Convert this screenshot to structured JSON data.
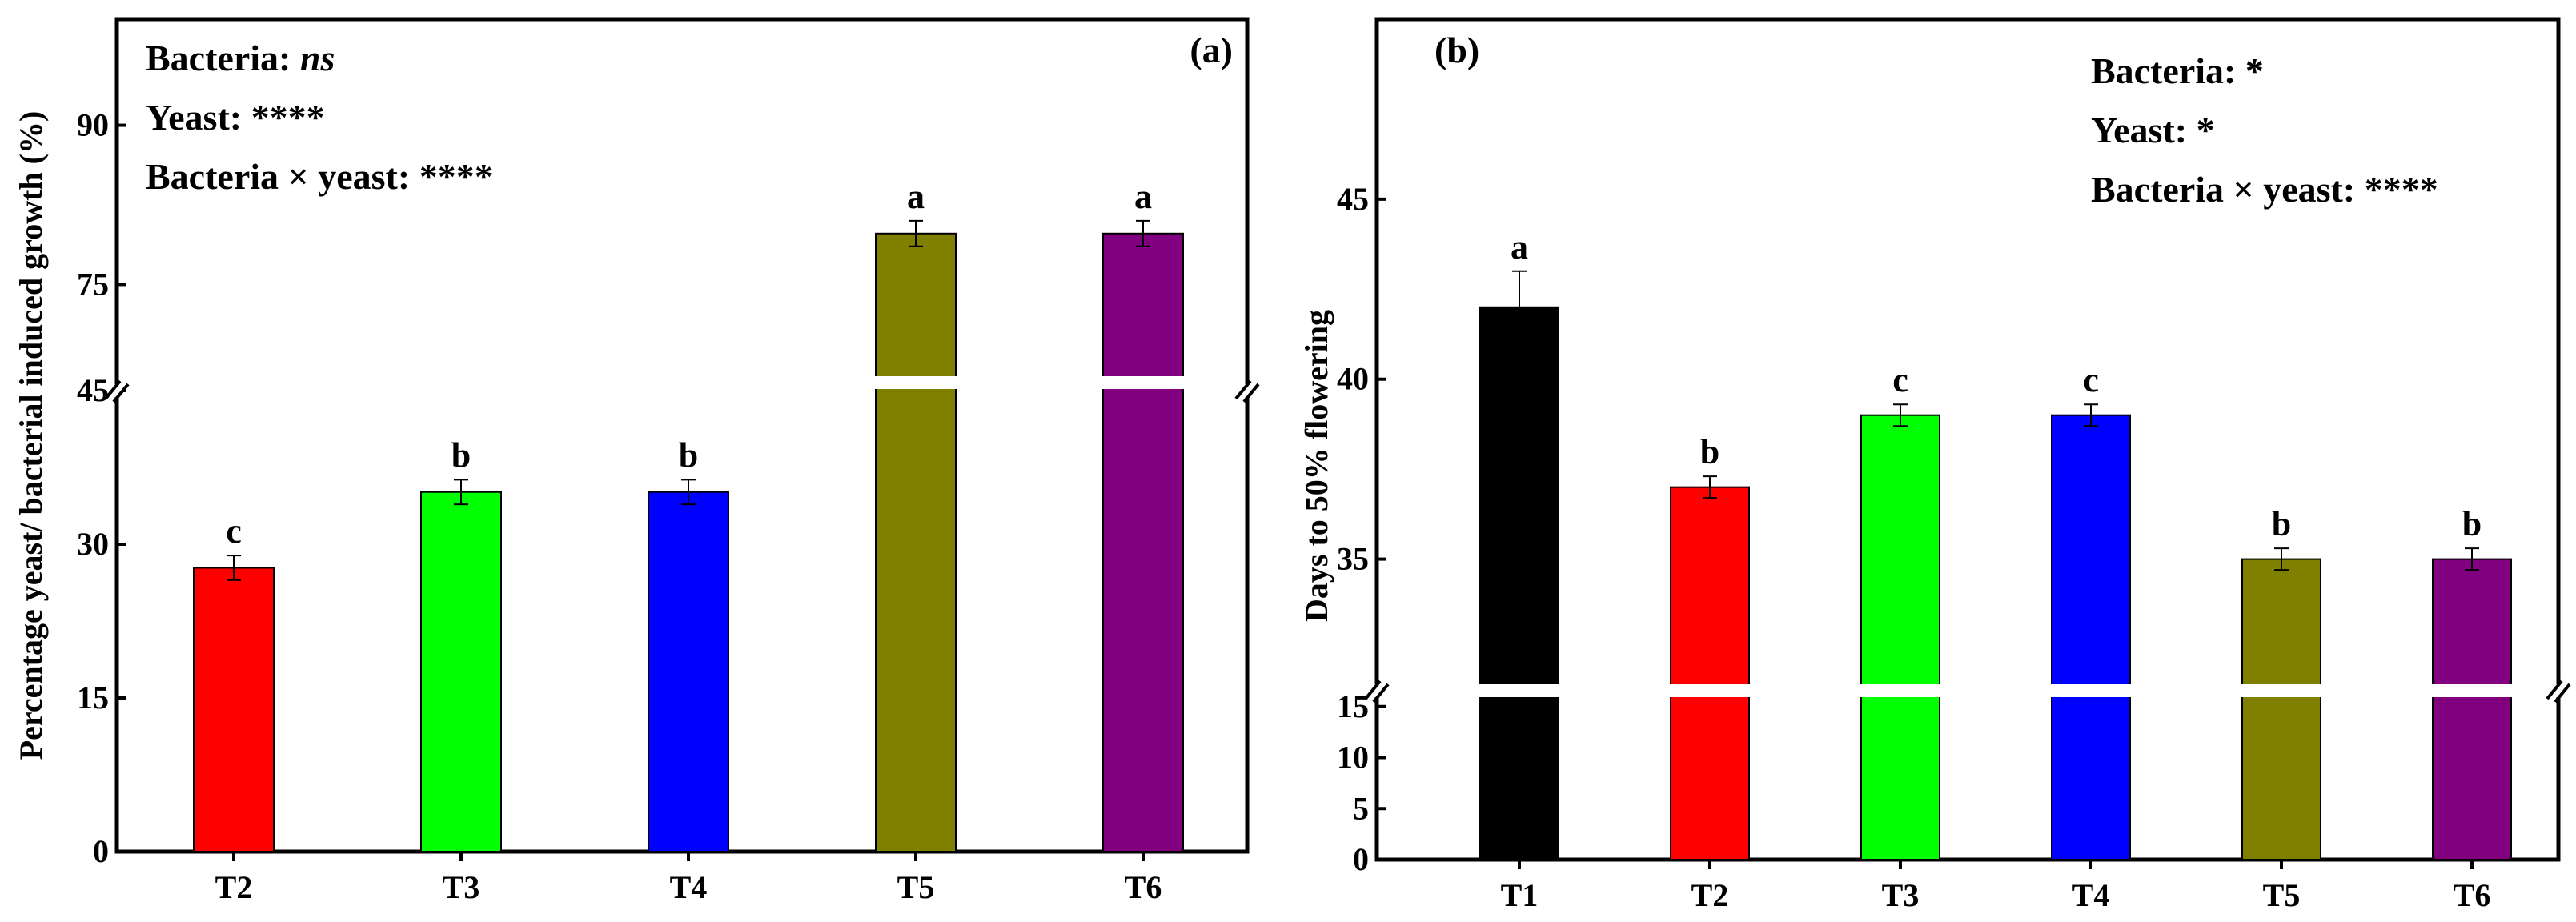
{
  "colors": {
    "T1": "#000000",
    "T2": "#ff0000",
    "T3": "#00ff00",
    "T4": "#0000ff",
    "T5": "#808000",
    "T6": "#800080"
  },
  "chart_data": [
    {
      "type": "bar",
      "panel_label": "(a)",
      "ylabel": "Percentage yeast/ bacterial induced growth (%)",
      "xlabel": "",
      "categories": [
        "T2",
        "T3",
        "T4",
        "T5",
        "T6"
      ],
      "values": [
        27.7,
        35.1,
        35.1,
        79.8,
        79.8
      ],
      "errors": [
        1.2,
        1.2,
        1.2,
        1.2,
        1.2
      ],
      "significance_letters": [
        "c",
        "b",
        "b",
        "a",
        "a"
      ],
      "broken_axis": {
        "lower_range": [
          0,
          45
        ],
        "upper_range": [
          65,
          100
        ],
        "lower_ticks": [
          "0",
          "15",
          "30",
          "45"
        ],
        "upper_ticks": [
          "75",
          "90"
        ]
      },
      "annotations": [
        {
          "label": "Bacteria: ",
          "value": "ns",
          "italic": true
        },
        {
          "label": "Yeast: ",
          "value": "****",
          "italic": false
        },
        {
          "label": "Bacteria × yeast: ",
          "value": "****",
          "italic": false
        }
      ]
    },
    {
      "type": "bar",
      "panel_label": "(b)",
      "ylabel": "Days to 50% flowering",
      "xlabel": "",
      "categories": [
        "T1",
        "T2",
        "T3",
        "T4",
        "T5",
        "T6"
      ],
      "values": [
        42,
        37,
        39,
        39,
        35,
        35
      ],
      "errors": [
        1.0,
        0.3,
        0.3,
        0.3,
        0.3,
        0.3
      ],
      "significance_letters": [
        "a",
        "b",
        "c",
        "c",
        "b",
        "b"
      ],
      "broken_axis": {
        "lower_range": [
          0,
          16
        ],
        "upper_range": [
          31.5,
          50
        ],
        "lower_ticks": [
          "0",
          "5",
          "10",
          "15"
        ],
        "upper_ticks": [
          "35",
          "40",
          "45"
        ]
      },
      "annotations": [
        {
          "label": "Bacteria: ",
          "value": "*",
          "italic": false
        },
        {
          "label": "Yeast: ",
          "value": "*",
          "italic": false
        },
        {
          "label": "Bacteria × yeast: ",
          "value": "****",
          "italic": false
        }
      ]
    }
  ]
}
